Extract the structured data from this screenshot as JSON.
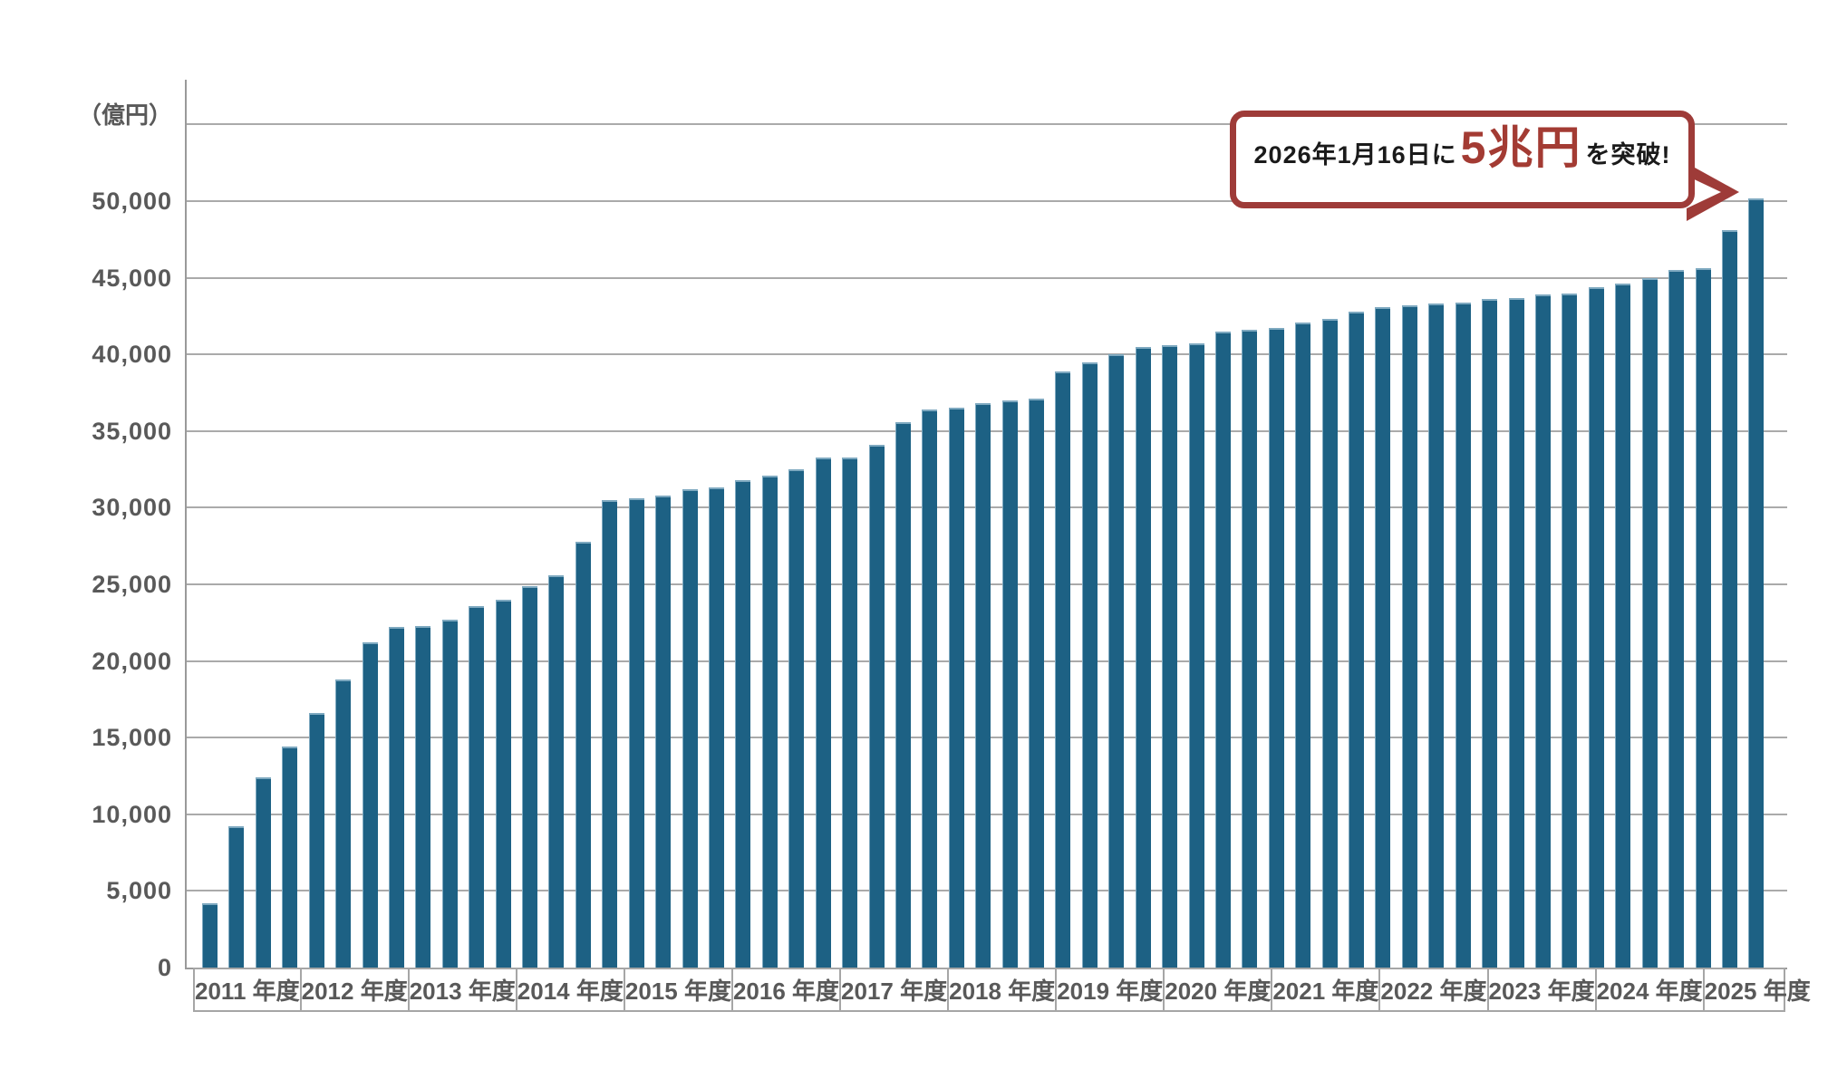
{
  "chart_data": {
    "type": "bar",
    "unit_label": "（億円）",
    "y_axis": {
      "min": 0,
      "max": 55000,
      "step": 5000,
      "tick_labels": [
        "0",
        "5,000",
        "10,000",
        "15,000",
        "20,000",
        "25,000",
        "30,000",
        "35,000",
        "40,000",
        "45,000",
        "50,000"
      ],
      "grid": "on"
    },
    "years": [
      {
        "label": "2011 年度",
        "values": [
          4200,
          9200,
          12400,
          14400
        ]
      },
      {
        "label": "2012 年度",
        "values": [
          16600,
          18800,
          21200,
          22200
        ]
      },
      {
        "label": "2013 年度",
        "values": [
          22300,
          22700,
          23600,
          24000
        ]
      },
      {
        "label": "2014 年度",
        "values": [
          24900,
          25600,
          27800,
          30500
        ]
      },
      {
        "label": "2015 年度",
        "values": [
          30600,
          30800,
          31200,
          31300
        ]
      },
      {
        "label": "2016 年度",
        "values": [
          31800,
          32100,
          32500,
          33300
        ]
      },
      {
        "label": "2017 年度",
        "values": [
          33300,
          34100,
          35600,
          36400
        ]
      },
      {
        "label": "2018 年度",
        "values": [
          36500,
          36800,
          37000,
          37100
        ]
      },
      {
        "label": "2019 年度",
        "values": [
          38900,
          39500,
          40000,
          40500
        ]
      },
      {
        "label": "2020 年度",
        "values": [
          40600,
          40700,
          41500,
          41600
        ]
      },
      {
        "label": "2021 年度",
        "values": [
          41700,
          42100,
          42300,
          42800
        ]
      },
      {
        "label": "2022 年度",
        "values": [
          43100,
          43200,
          43300,
          43400
        ]
      },
      {
        "label": "2023 年度",
        "values": [
          43600,
          43700,
          43900,
          44000
        ]
      },
      {
        "label": "2024 年度",
        "values": [
          44400,
          44600,
          45000,
          45500
        ]
      },
      {
        "label": "2025 年度",
        "values": [
          45600,
          48100,
          50200
        ]
      }
    ],
    "annotation": {
      "prefix": "2026年1月16日に",
      "highlight": "5兆円",
      "suffix": "を突破!"
    }
  },
  "colors": {
    "bar": "#1d6184",
    "grid": "#aaaaaa",
    "axis": "#9a9a9a",
    "label_text": "#595959",
    "callout_border": "#9e3b38",
    "callout_highlight": "#a33b33",
    "callout_text": "#1a1a1a"
  }
}
